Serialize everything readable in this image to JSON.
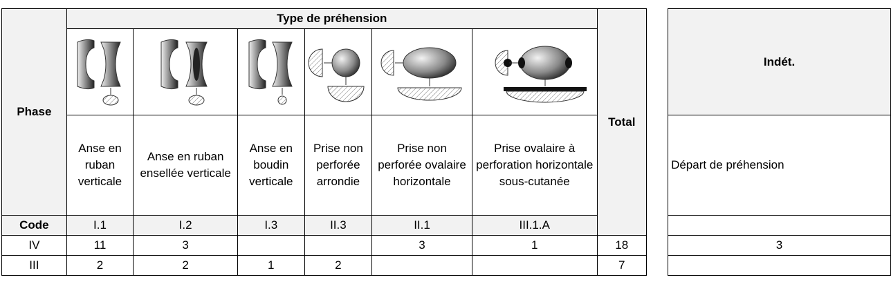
{
  "table": {
    "phase_label": "Phase",
    "group_label": "Type de préhension",
    "total_label": "Total",
    "indet_label": "Indét.",
    "indet_description": "Départ de préhension",
    "code_label": "Code",
    "types": [
      {
        "description": "Anse en ruban verticale",
        "code": "I.1"
      },
      {
        "description": "Anse en ruban ensellée verticale",
        "code": "I.2"
      },
      {
        "description": "Anse en boudin verticale",
        "code": "I.3"
      },
      {
        "description": "Prise non perforée arrondie",
        "code": "II.3"
      },
      {
        "description": "Prise non perforée ovalaire horizontale",
        "code": "II.1"
      },
      {
        "description": "Prise ovalaire à perforation horizontale sous-cutanée",
        "code": "III.1.A"
      }
    ],
    "rows": [
      {
        "phase": "IV",
        "counts": [
          11,
          3,
          null,
          null,
          3,
          1
        ],
        "total": 18,
        "indet": 3
      },
      {
        "phase": "III",
        "counts": [
          2,
          2,
          1,
          2,
          null,
          null
        ],
        "total": 7,
        "indet": null
      }
    ]
  }
}
